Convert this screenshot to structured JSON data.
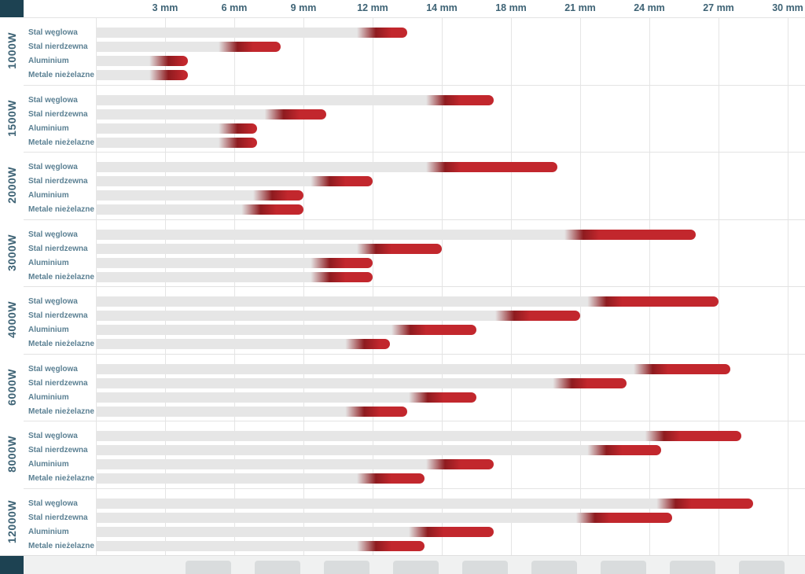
{
  "chart_data": {
    "type": "bar",
    "title": "",
    "unit": "mm",
    "description_visible_text_only": "",
    "x_ticks": [
      "3 mm",
      "6 mm",
      "9 mm",
      "12 mm",
      "14 mm",
      "18 mm",
      "21 mm",
      "24 mm",
      "27 mm",
      "30 mm"
    ],
    "x_tick_values": [
      3,
      6,
      9,
      12,
      14,
      18,
      21,
      24,
      27,
      30
    ],
    "scale_breakpoints": [
      0,
      3,
      6,
      9,
      12,
      14,
      18,
      21,
      24,
      27,
      30
    ],
    "materials": [
      "Stal węglowa",
      "Stal nierdzewna",
      "Aluminium",
      "Metale nieżelazne"
    ],
    "groups": [
      {
        "power": "1000W",
        "bars": [
          {
            "material": "Stal węglowa",
            "standard": 12,
            "max": 13
          },
          {
            "material": "Stal nierdzewna",
            "standard": 6,
            "max": 8
          },
          {
            "material": "Aluminium",
            "standard": 3,
            "max": 4
          },
          {
            "material": "Metale nieżelazne",
            "standard": 3,
            "max": 4
          }
        ]
      },
      {
        "power": "1500W",
        "bars": [
          {
            "material": "Stal węglowa",
            "standard": 14,
            "max": 17
          },
          {
            "material": "Stal nierdzewna",
            "standard": 8,
            "max": 10
          },
          {
            "material": "Aluminium",
            "standard": 6,
            "max": 7
          },
          {
            "material": "Metale nieżelazne",
            "standard": 6,
            "max": 7
          }
        ]
      },
      {
        "power": "2000W",
        "bars": [
          {
            "material": "Stal węglowa",
            "standard": 14,
            "max": 20
          },
          {
            "material": "Stal nierdzewna",
            "standard": 10,
            "max": 12
          },
          {
            "material": "Aluminium",
            "standard": 7.5,
            "max": 9
          },
          {
            "material": "Metale nieżelazne",
            "standard": 7,
            "max": 9
          }
        ]
      },
      {
        "power": "3000W",
        "bars": [
          {
            "material": "Stal węglowa",
            "standard": 21,
            "max": 26
          },
          {
            "material": "Stal nierdzewna",
            "standard": 12,
            "max": 14
          },
          {
            "material": "Aluminium",
            "standard": 10,
            "max": 12
          },
          {
            "material": "Metale nieżelazne",
            "standard": 10,
            "max": 12
          }
        ]
      },
      {
        "power": "4000W",
        "bars": [
          {
            "material": "Stal węglowa",
            "standard": 22,
            "max": 27
          },
          {
            "material": "Stal nierdzewna",
            "standard": 18,
            "max": 21
          },
          {
            "material": "Aluminium",
            "standard": 13,
            "max": 16
          },
          {
            "material": "Metale nieżelazne",
            "standard": 11.5,
            "max": 12.5
          }
        ]
      },
      {
        "power": "6000W",
        "bars": [
          {
            "material": "Stal węglowa",
            "standard": 24,
            "max": 27.5
          },
          {
            "material": "Stal nierdzewna",
            "standard": 20.5,
            "max": 23
          },
          {
            "material": "Aluminium",
            "standard": 13.5,
            "max": 16
          },
          {
            "material": "Metale nieżelazne",
            "standard": 11.5,
            "max": 13
          }
        ]
      },
      {
        "power": "8000W",
        "bars": [
          {
            "material": "Stal węglowa",
            "standard": 24.5,
            "max": 28
          },
          {
            "material": "Stal nierdzewna",
            "standard": 22,
            "max": 24.5
          },
          {
            "material": "Aluminium",
            "standard": 14,
            "max": 17
          },
          {
            "material": "Metale nieżelazne",
            "standard": 12,
            "max": 13.5
          }
        ]
      },
      {
        "power": "12000W",
        "bars": [
          {
            "material": "Stal węglowa",
            "standard": 25,
            "max": 28.5
          },
          {
            "material": "Stal nierdzewna",
            "standard": 21.5,
            "max": 25
          },
          {
            "material": "Aluminium",
            "standard": 13.5,
            "max": 17
          },
          {
            "material": "Metale nieżelazne",
            "standard": 12,
            "max": 13.5
          }
        ]
      }
    ],
    "legend_position": "none",
    "grid": "vertical",
    "colors": {
      "red": "#c2272d",
      "red_dark": "#8e1b1f",
      "bar_gray": "#e6e6e6",
      "label_teal": "#3e6375",
      "material_label": "#5b8093",
      "corner_dark": "#1d4252",
      "gridline": "#e5e5e5"
    }
  }
}
